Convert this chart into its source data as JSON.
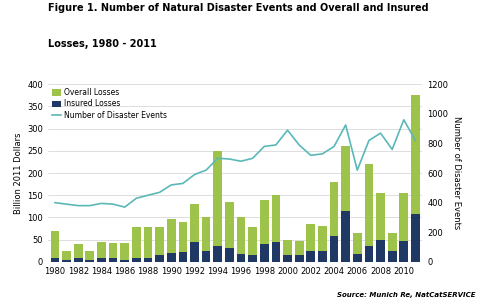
{
  "years": [
    1980,
    1981,
    1982,
    1983,
    1984,
    1985,
    1986,
    1987,
    1988,
    1989,
    1990,
    1991,
    1992,
    1993,
    1994,
    1995,
    1996,
    1997,
    1998,
    1999,
    2000,
    2001,
    2002,
    2003,
    2004,
    2005,
    2006,
    2007,
    2008,
    2009,
    2010,
    2011
  ],
  "overall_losses": [
    70,
    25,
    40,
    25,
    45,
    43,
    42,
    78,
    78,
    78,
    96,
    90,
    130,
    102,
    250,
    135,
    100,
    78,
    140,
    150,
    50,
    48,
    85,
    80,
    180,
    260,
    65,
    220,
    155,
    65,
    155,
    375
  ],
  "insured_losses": [
    8,
    5,
    8,
    5,
    8,
    8,
    5,
    8,
    8,
    15,
    20,
    22,
    45,
    25,
    35,
    32,
    18,
    15,
    40,
    45,
    15,
    15,
    25,
    25,
    58,
    115,
    18,
    35,
    50,
    25,
    48,
    107
  ],
  "disaster_events": [
    400,
    390,
    380,
    380,
    395,
    390,
    370,
    430,
    450,
    470,
    520,
    530,
    590,
    620,
    700,
    695,
    680,
    700,
    780,
    790,
    890,
    790,
    720,
    730,
    780,
    925,
    620,
    820,
    870,
    760,
    960,
    820
  ],
  "bar_color_overall": "#9dc34a",
  "bar_color_insured": "#1f3864",
  "line_color": "#5ab8b8",
  "title_line1": "Figure 1. Number of Natural Disaster Events and Overall and Insured",
  "title_line2": "Losses, 1980 - 2011",
  "ylabel_left": "Billion 2011 Dollars",
  "ylabel_right": "Number of Disaster Events",
  "source_text": "Source: Munich Re, NatCatSERVICE",
  "ylim_left": [
    0,
    400
  ],
  "ylim_right": [
    0,
    1200
  ],
  "yticks_left": [
    0,
    50,
    100,
    150,
    200,
    250,
    300,
    350,
    400
  ],
  "yticks_right": [
    0,
    200,
    400,
    600,
    800,
    1000,
    1200
  ],
  "bg_color": "#ffffff",
  "legend_labels": [
    "Overall Losses",
    "Insured Losses",
    "Number of Disaster Events"
  ]
}
